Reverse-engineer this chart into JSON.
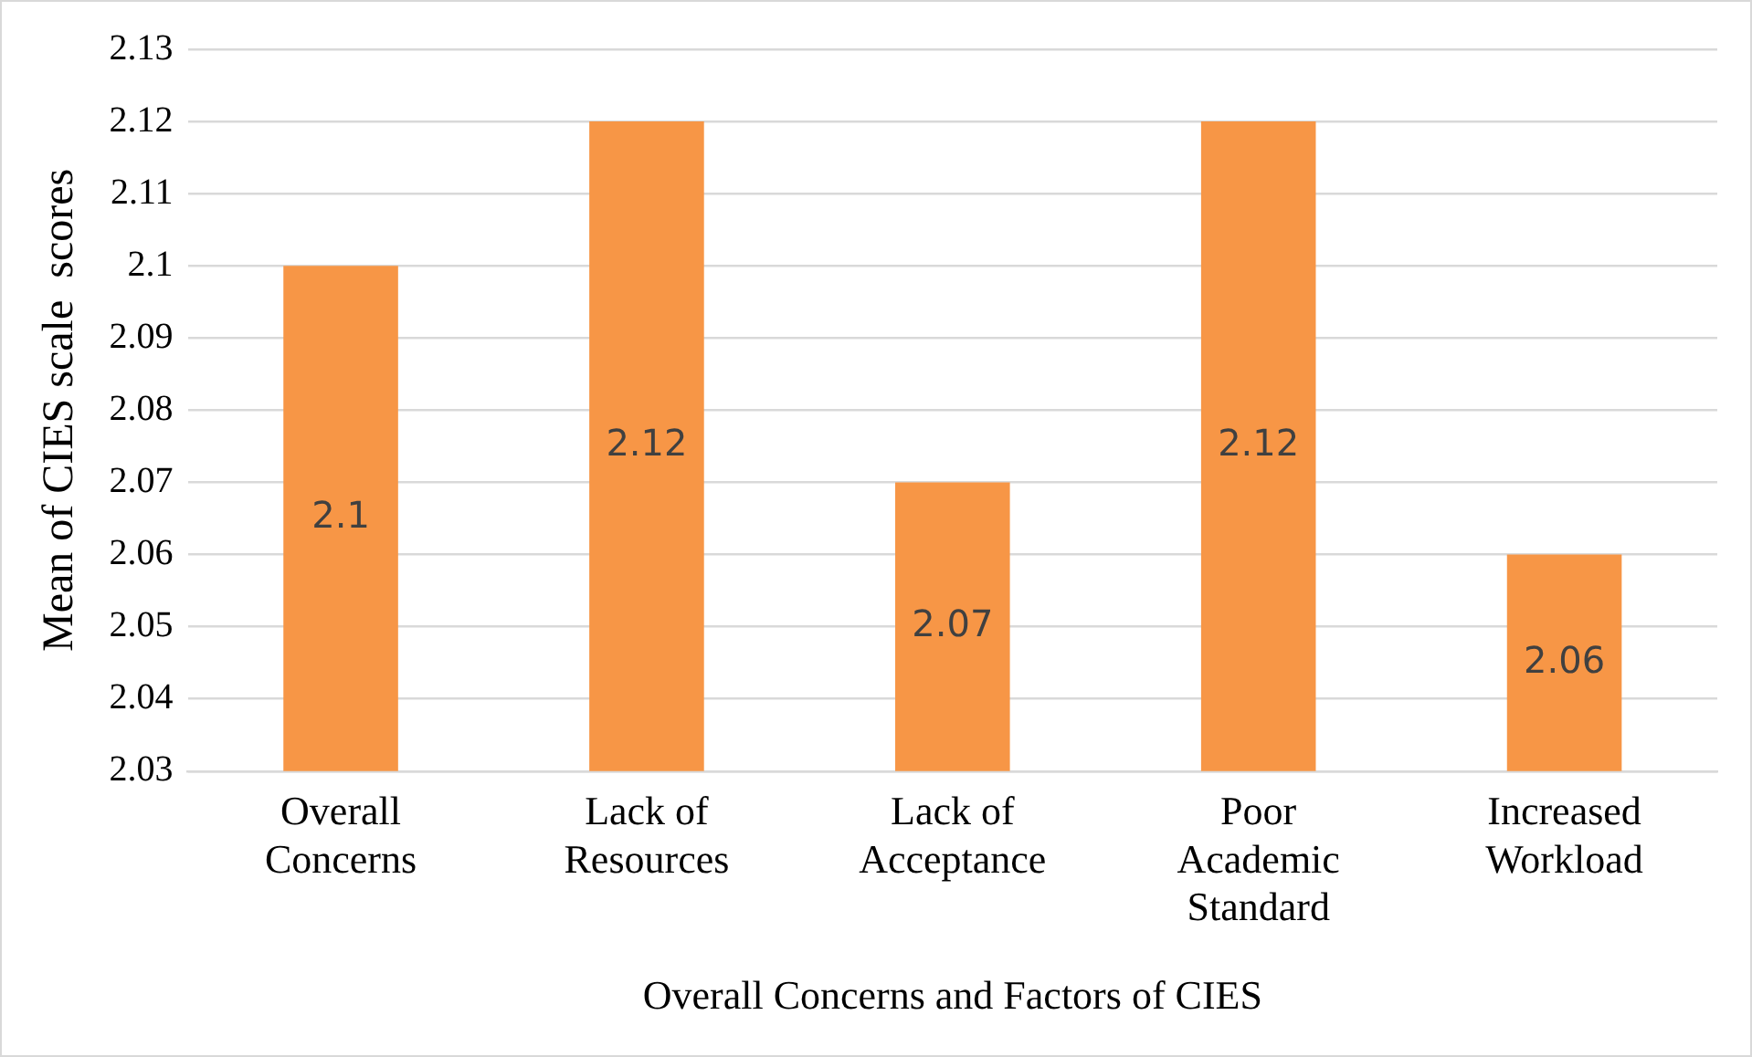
{
  "chart_data": {
    "type": "bar",
    "xlabel": "Overall Concerns and Factors of CIES",
    "ylabel": "Mean of CIES scale  scores",
    "categories": [
      "Overall Concerns",
      "Lack of Resources",
      "Lack of Acceptance",
      "Poor Academic Standard",
      "Increased Workload"
    ],
    "values": [
      2.1,
      2.12,
      2.07,
      2.12,
      2.06
    ],
    "color": "#f79646",
    "ylim": [
      2.03,
      2.13
    ],
    "yticks": [
      2.03,
      2.04,
      2.05,
      2.06,
      2.07,
      2.08,
      2.09,
      2.1,
      2.11,
      2.12,
      2.13
    ],
    "grid": "y",
    "data_labels": true
  }
}
